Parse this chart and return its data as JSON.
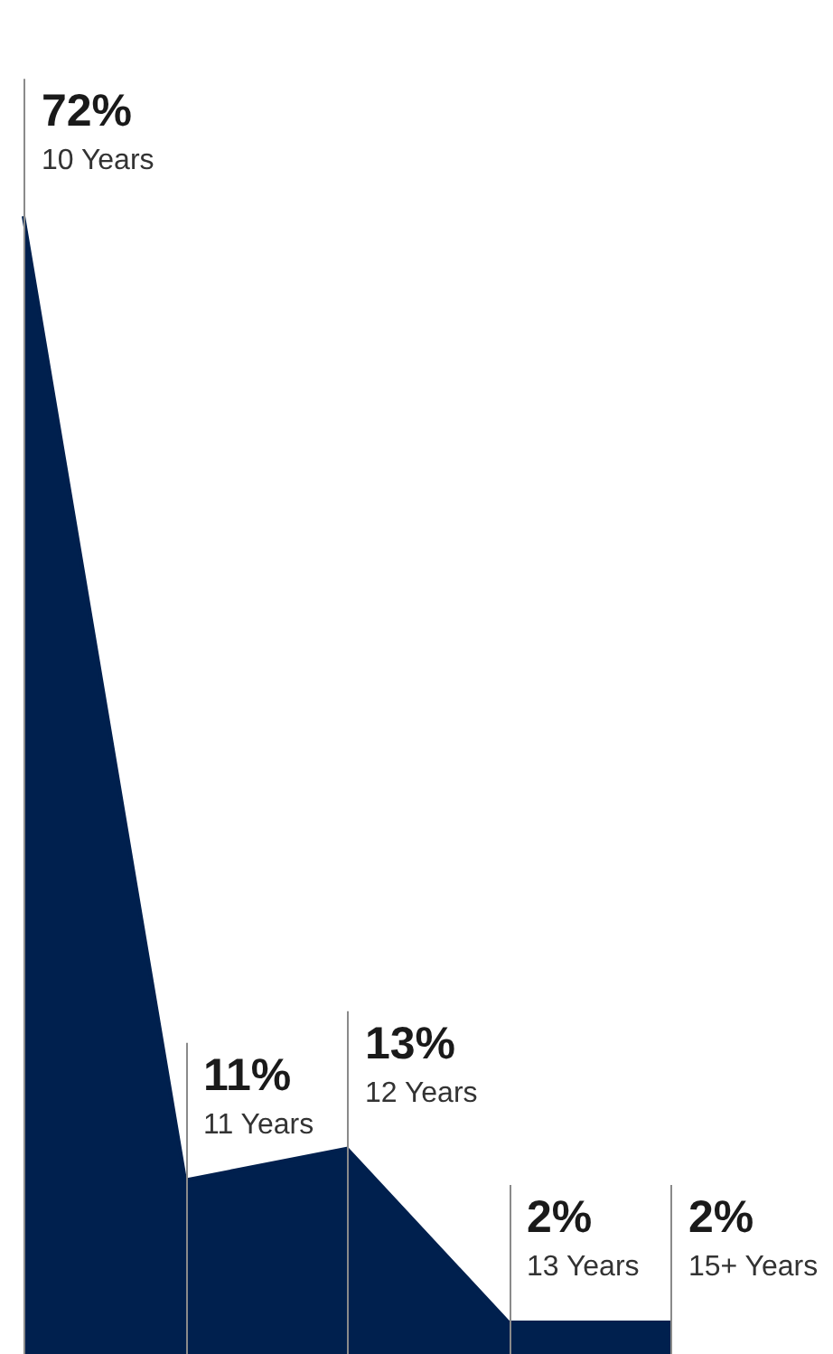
{
  "chart_data": {
    "type": "area",
    "categories": [
      null,
      null,
      null,
      null,
      null
    ],
    "annotations": [
      "10 Years",
      "11 Years",
      "12 Years",
      "13 Years",
      "15+ Years"
    ],
    "values": [
      72,
      11,
      13,
      2,
      2
    ],
    "value_labels": [
      "72%",
      "11%",
      "13%",
      "2%",
      "2%"
    ],
    "color": "#00204e",
    "tick_labels": false,
    "grid": false,
    "legend": false
  }
}
